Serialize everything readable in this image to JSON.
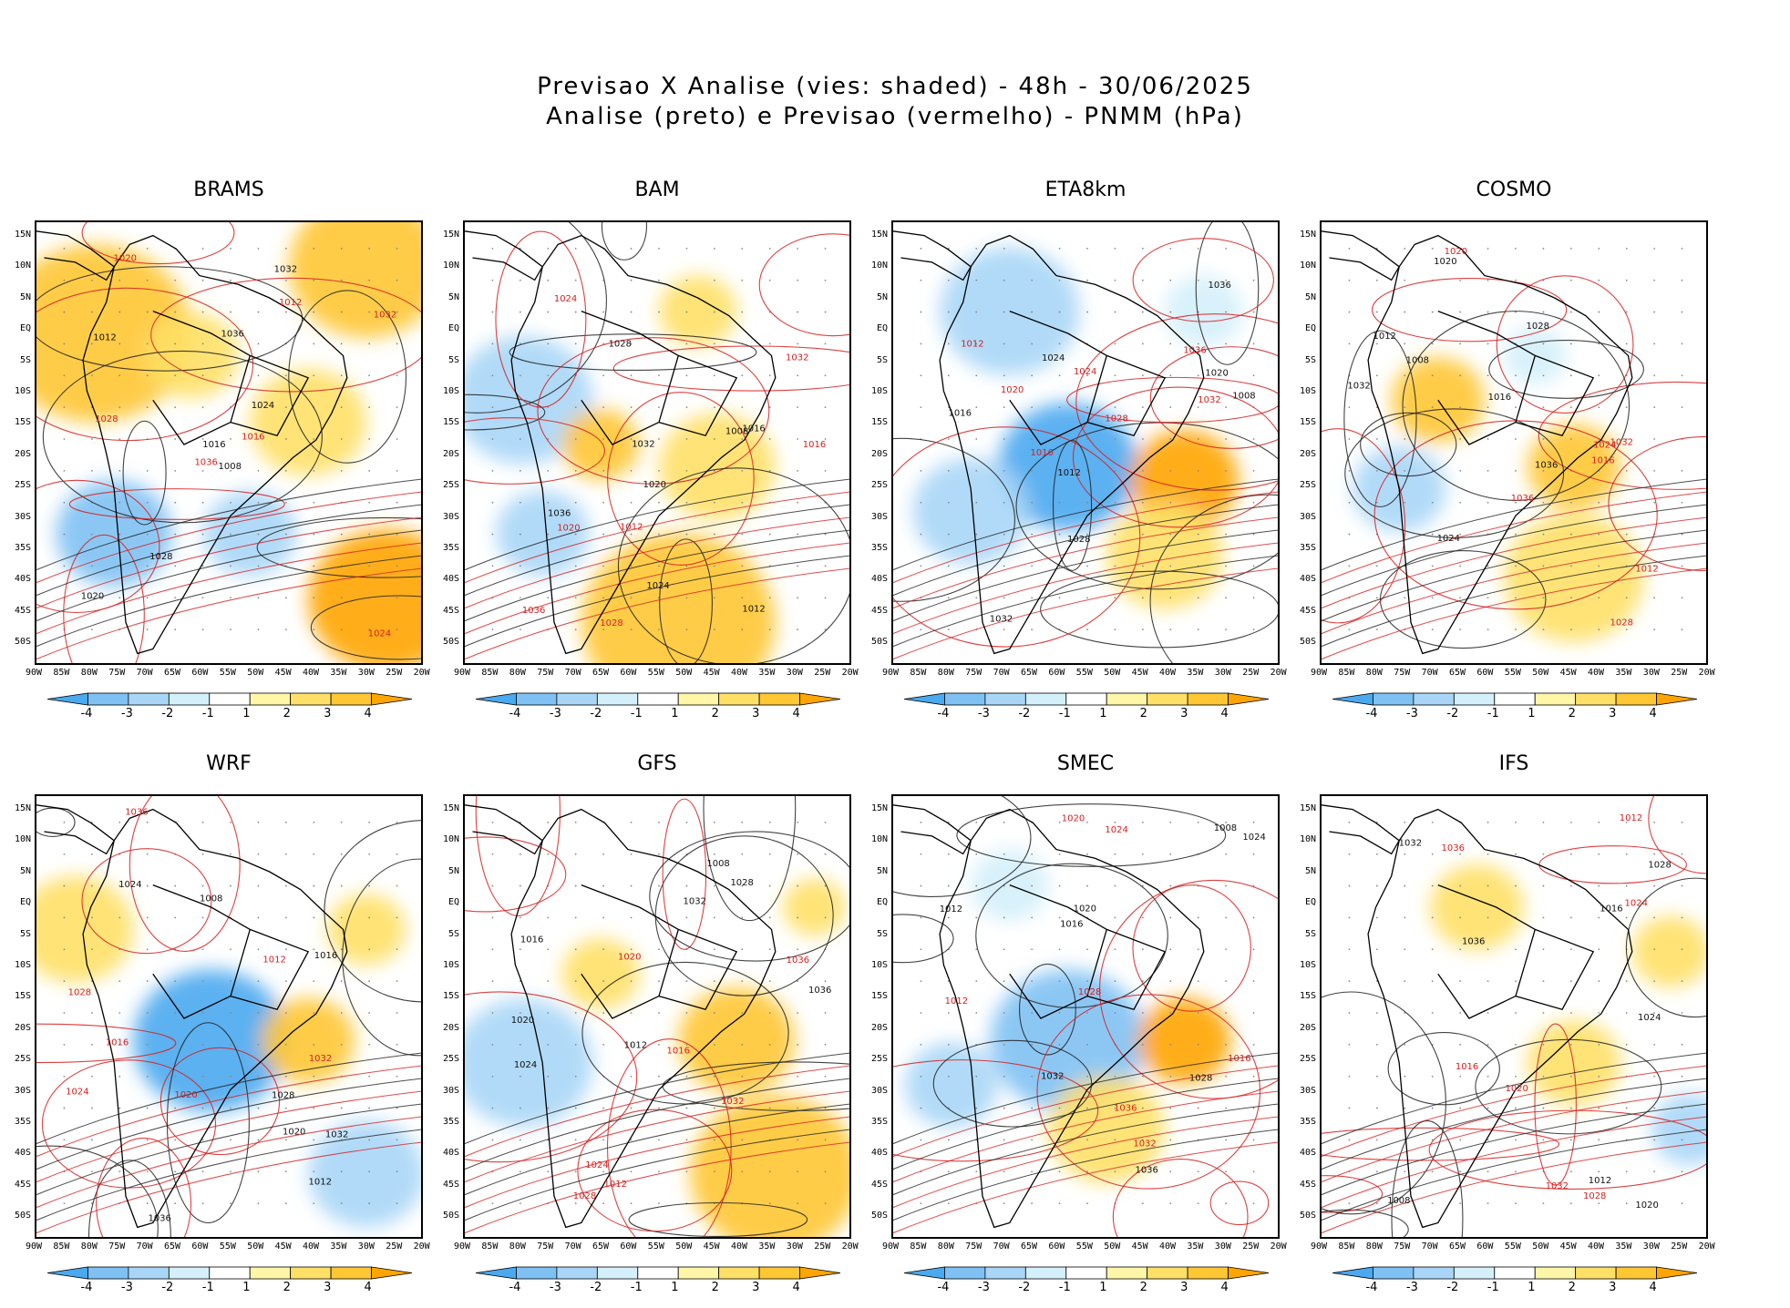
{
  "title": {
    "line1": "Previsao X Analise (vies: shaded) - 48h - 30/06/2025",
    "line2": "Analise (preto) e Previsao (vermelho) - PNMM (hPa)"
  },
  "panels": [
    {
      "name": "BRAMS"
    },
    {
      "name": "BAM"
    },
    {
      "name": "ETA8km"
    },
    {
      "name": "COSMO"
    },
    {
      "name": "WRF"
    },
    {
      "name": "GFS"
    },
    {
      "name": "SMEC"
    },
    {
      "name": "IFS"
    }
  ],
  "lat_labels": [
    "15N",
    "10N",
    "5N",
    "EQ",
    "5S",
    "10S",
    "15S",
    "20S",
    "25S",
    "30S",
    "35S",
    "40S",
    "45S",
    "50S"
  ],
  "lon_labels": [
    "90W",
    "85W",
    "80W",
    "75W",
    "70W",
    "65W",
    "60W",
    "55W",
    "50W",
    "45W",
    "40W",
    "35W",
    "30W",
    "25W",
    "20W"
  ],
  "colorbar": {
    "labels": [
      "-4",
      "-3",
      "-2",
      "-1",
      "1",
      "2",
      "3",
      "4"
    ],
    "colors": [
      "#4aa9ef",
      "#7fc1f3",
      "#a9d6f7",
      "#d4f0fb",
      "#ffffff",
      "#fff6a8",
      "#ffe066",
      "#ffc733",
      "#ffa500"
    ]
  },
  "contour_labels": {
    "black": [
      "1008",
      "1012",
      "1016",
      "1020",
      "1024",
      "1028",
      "1032",
      "1036"
    ],
    "red": [
      "1012",
      "1016",
      "1020",
      "1024",
      "1028",
      "1032",
      "1036"
    ]
  }
}
